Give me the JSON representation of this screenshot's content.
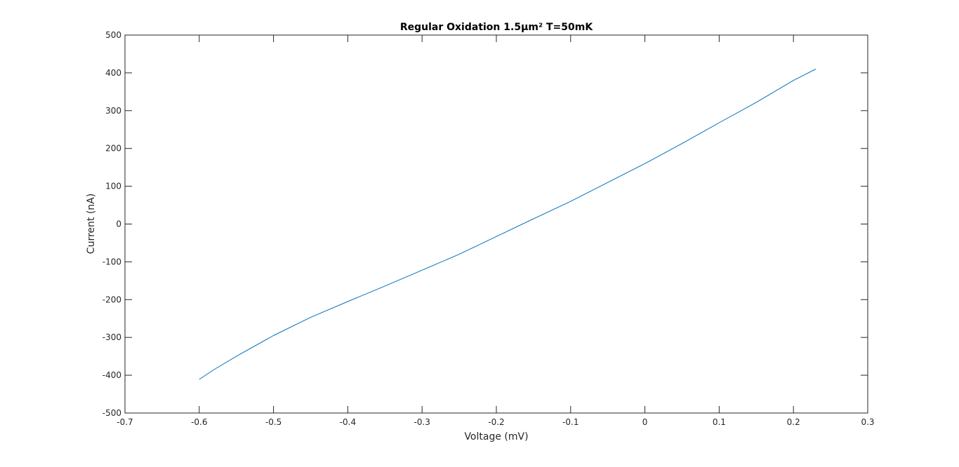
{
  "chart_data": {
    "type": "line",
    "title": "Regular Oxidation 1.5µm² T=50mK",
    "xlabel": "Voltage (mV)",
    "ylabel": "Current (nA)",
    "xlim": [
      -0.7,
      0.3
    ],
    "ylim": [
      -500,
      500
    ],
    "xticks": [
      -0.7,
      -0.6,
      -0.5,
      -0.4,
      -0.3,
      -0.2,
      -0.1,
      0,
      0.1,
      0.2,
      0.3
    ],
    "xtick_labels": [
      "-0.7",
      "-0.6",
      "-0.5",
      "-0.4",
      "-0.3",
      "-0.2",
      "-0.1",
      "0",
      "0.1",
      "0.2",
      "0.3"
    ],
    "yticks": [
      500,
      400,
      300,
      200,
      100,
      0,
      -100,
      -200,
      -300,
      -400,
      -500
    ],
    "ytick_labels": [
      "500",
      "400",
      "300",
      "200",
      "100",
      "0",
      "-100",
      "-200",
      "-300",
      "-400",
      "-500"
    ],
    "grid": false,
    "legend": "none",
    "colors": {
      "line": "#0072bd",
      "axes": "#262626",
      "background": "#ffffff"
    },
    "series": [
      {
        "x": [
          -0.6,
          -0.58,
          -0.55,
          -0.5,
          -0.45,
          -0.4,
          -0.35,
          -0.3,
          -0.25,
          -0.2,
          -0.15,
          -0.1,
          -0.05,
          0,
          0.05,
          0.1,
          0.15,
          0.2,
          0.23
        ],
        "y": [
          -411,
          -385,
          -350,
          -295,
          -247,
          -205,
          -164,
          -122,
          -80,
          -33,
          14,
          60,
          110,
          160,
          213,
          268,
          322,
          380,
          410
        ]
      }
    ]
  }
}
